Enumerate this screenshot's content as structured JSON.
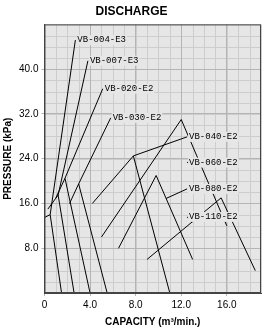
{
  "chart_data": {
    "type": "line",
    "title": "DISCHARGE",
    "x_label": "CAPACITY (m³/min.)",
    "y_label": "PRESSURE (kPa)",
    "xlim": [
      0,
      19
    ],
    "ylim": [
      0,
      48
    ],
    "xticks": [
      0,
      {
        "value": 4,
        "label": "4.0"
      },
      {
        "value": 8,
        "label": "8.0"
      },
      {
        "value": 12,
        "label": "12.0"
      },
      {
        "value": 16,
        "label": "16.0"
      }
    ],
    "yticks": [
      {
        "value": 8,
        "label": "8.0"
      },
      {
        "value": 16,
        "label": "16.0"
      },
      {
        "value": 24,
        "label": "24.0"
      },
      {
        "value": 32,
        "label": "32.0"
      },
      {
        "value": 40,
        "label": "40.0"
      }
    ],
    "grid": true,
    "color": "#000000",
    "series": [
      {
        "name": "VB-004-E3",
        "x": [
          0,
          0.5,
          1.5
        ],
        "values": [
          13.5,
          14,
          0
        ],
        "label_x": 2.8,
        "label_y": 45.2
      },
      {
        "name": "VB-007-E3",
        "x": [
          0.3,
          1.2,
          2.6
        ],
        "values": [
          15,
          17.5,
          0
        ],
        "label_x": 3.9,
        "label_y": 41.5
      },
      {
        "name": "VB-020-E2",
        "x": [
          1.0,
          1.8,
          4.0
        ],
        "values": [
          17,
          20.5,
          0
        ],
        "label_x": 5.2,
        "label_y": 36.5
      },
      {
        "name": "VB-030-E2",
        "x": [
          2.2,
          3.0,
          5.5
        ],
        "values": [
          16,
          19.5,
          0
        ],
        "label_x": 5.9,
        "label_y": 31.3
      },
      {
        "name": "VB-040-E2",
        "x": [
          4.2,
          7.8,
          11
        ],
        "values": [
          16,
          24.5,
          0
        ],
        "label_x": 12.6,
        "label_y": 27.9
      },
      {
        "name": "VB-060-E2",
        "x": [
          5,
          12,
          16
        ],
        "values": [
          10,
          31,
          12
        ],
        "label_x": 12.6,
        "label_y": 23.3
      },
      {
        "name": "VB-080-E2",
        "x": [
          6.5,
          9.8,
          13
        ],
        "values": [
          8,
          21,
          6
        ],
        "label_x": 12.6,
        "label_y": 18.6
      },
      {
        "name": "VB-110-E2",
        "x": [
          9,
          15.5,
          18.5
        ],
        "values": [
          6,
          17,
          4
        ],
        "label_x": 12.6,
        "label_y": 13.6
      }
    ]
  }
}
